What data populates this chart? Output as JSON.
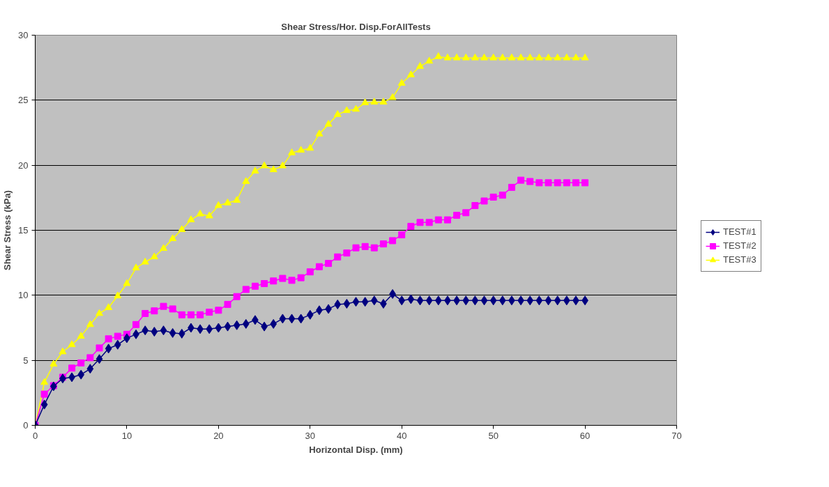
{
  "chart_data": {
    "type": "line",
    "title": "Shear Stress/Hor. Disp.ForAllTests",
    "xlabel": "Horizontal Disp. (mm)",
    "ylabel": "Shear Stress (kPa)",
    "x": [
      0,
      1,
      2,
      3,
      4,
      5,
      6,
      7,
      8,
      9,
      10,
      11,
      12,
      13,
      14,
      15,
      16,
      17,
      18,
      19,
      20,
      21,
      22,
      23,
      24,
      25,
      26,
      27,
      28,
      29,
      30,
      31,
      32,
      33,
      34,
      35,
      36,
      37,
      38,
      39,
      40,
      41,
      42,
      43,
      44,
      45,
      46,
      47,
      48,
      49,
      50,
      51,
      52,
      53,
      54,
      55,
      56,
      57,
      58,
      59,
      60
    ],
    "series": [
      {
        "name": "TEST#1",
        "color": "#000080",
        "marker": "diamond",
        "values": [
          0,
          1.6,
          3.0,
          3.6,
          3.7,
          3.9,
          4.35,
          5.1,
          5.9,
          6.2,
          6.7,
          7.0,
          7.3,
          7.2,
          7.3,
          7.1,
          7.05,
          7.5,
          7.4,
          7.4,
          7.5,
          7.6,
          7.7,
          7.8,
          8.1,
          7.6,
          7.8,
          8.2,
          8.2,
          8.2,
          8.5,
          8.85,
          8.95,
          9.3,
          9.35,
          9.5,
          9.5,
          9.6,
          9.35,
          10.1,
          9.6,
          9.7,
          9.6,
          9.6,
          9.6,
          9.6,
          9.6,
          9.6,
          9.6,
          9.6,
          9.6,
          9.6,
          9.6,
          9.6,
          9.6,
          9.6,
          9.6,
          9.6,
          9.6,
          9.6,
          9.6
        ]
      },
      {
        "name": "TEST#2",
        "color": "#ff00ff",
        "marker": "square",
        "values": [
          0,
          2.4,
          3.05,
          3.7,
          4.4,
          4.8,
          5.2,
          5.95,
          6.65,
          6.85,
          7.0,
          7.75,
          8.6,
          8.8,
          9.15,
          8.95,
          8.5,
          8.5,
          8.5,
          8.7,
          8.85,
          9.3,
          9.9,
          10.45,
          10.7,
          10.9,
          11.1,
          11.3,
          11.15,
          11.35,
          11.8,
          12.2,
          12.45,
          12.95,
          13.25,
          13.65,
          13.75,
          13.65,
          13.95,
          14.2,
          14.65,
          15.3,
          15.6,
          15.6,
          15.8,
          15.8,
          16.15,
          16.35,
          16.9,
          17.25,
          17.55,
          17.7,
          18.3,
          18.85,
          18.75,
          18.65,
          18.65,
          18.65,
          18.65,
          18.65,
          18.65
        ]
      },
      {
        "name": "TEST#3",
        "color": "#ffff00",
        "marker": "triangle",
        "values": [
          0,
          3.3,
          4.7,
          5.65,
          6.2,
          6.85,
          7.75,
          8.6,
          9.05,
          9.95,
          10.9,
          12.1,
          12.55,
          12.95,
          13.6,
          14.35,
          15.05,
          15.8,
          16.25,
          16.1,
          16.9,
          17.1,
          17.3,
          18.75,
          19.55,
          19.95,
          19.65,
          19.95,
          20.95,
          21.15,
          21.3,
          22.4,
          23.15,
          23.9,
          24.2,
          24.3,
          24.8,
          24.85,
          24.85,
          25.2,
          26.3,
          26.95,
          27.6,
          28.0,
          28.35,
          28.25,
          28.25,
          28.25,
          28.25,
          28.25,
          28.25,
          28.25,
          28.25,
          28.25,
          28.25,
          28.25,
          28.25,
          28.25,
          28.25,
          28.25,
          28.25
        ]
      }
    ],
    "xlim": [
      0,
      70
    ],
    "xticks": [
      0,
      10,
      20,
      30,
      40,
      50,
      60,
      70
    ],
    "ylim": [
      0,
      30
    ],
    "yticks": [
      0,
      5,
      10,
      15,
      20,
      25,
      30
    ],
    "grid": "y",
    "legend": "right",
    "line_style": "solid"
  }
}
